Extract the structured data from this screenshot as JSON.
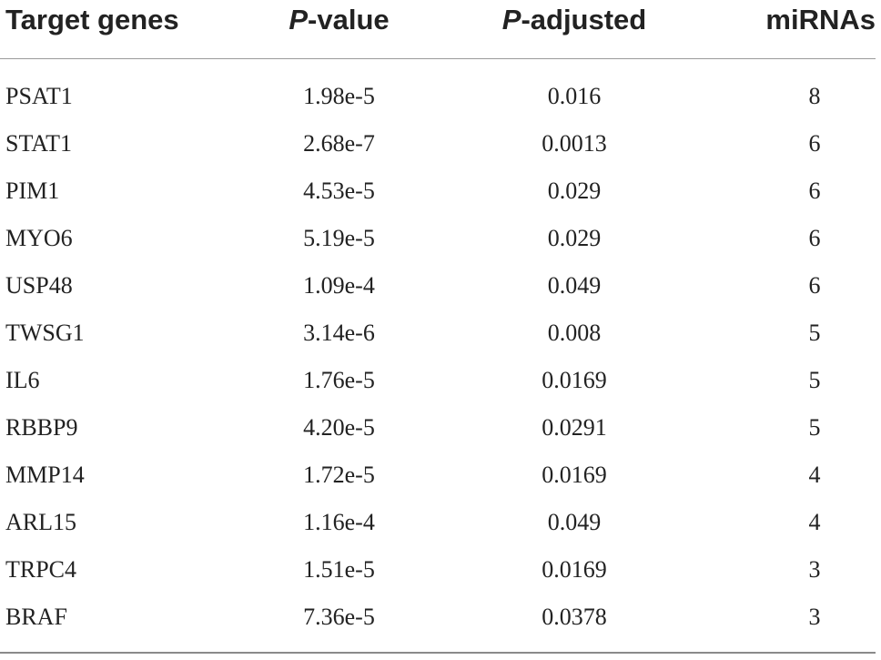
{
  "table": {
    "headers": {
      "gene": "Target genes",
      "pvalue_italic": "P",
      "pvalue_rest": "-value",
      "padj_italic": "P",
      "padj_rest": "-adjusted",
      "mirnas": "miRNAs"
    },
    "rows": [
      {
        "gene": "PSAT1",
        "pvalue": "1.98e-5",
        "padj": "0.016",
        "mirnas": "8"
      },
      {
        "gene": "STAT1",
        "pvalue": "2.68e-7",
        "padj": "0.0013",
        "mirnas": "6"
      },
      {
        "gene": "PIM1",
        "pvalue": "4.53e-5",
        "padj": "0.029",
        "mirnas": "6"
      },
      {
        "gene": "MYO6",
        "pvalue": "5.19e-5",
        "padj": "0.029",
        "mirnas": "6"
      },
      {
        "gene": "USP48",
        "pvalue": "1.09e-4",
        "padj": "0.049",
        "mirnas": "6"
      },
      {
        "gene": "TWSG1",
        "pvalue": "3.14e-6",
        "padj": "0.008",
        "mirnas": "5"
      },
      {
        "gene": "IL6",
        "pvalue": "1.76e-5",
        "padj": "0.0169",
        "mirnas": "5"
      },
      {
        "gene": "RBBP9",
        "pvalue": "4.20e-5",
        "padj": "0.0291",
        "mirnas": "5"
      },
      {
        "gene": "MMP14",
        "pvalue": "1.72e-5",
        "padj": "0.0169",
        "mirnas": "4"
      },
      {
        "gene": "ARL15",
        "pvalue": "1.16e-4",
        "padj": "0.049",
        "mirnas": "4"
      },
      {
        "gene": "TRPC4",
        "pvalue": "1.51e-5",
        "padj": "0.0169",
        "mirnas": "3"
      },
      {
        "gene": "BRAF",
        "pvalue": "7.36e-5",
        "padj": "0.0378",
        "mirnas": "3"
      }
    ]
  }
}
